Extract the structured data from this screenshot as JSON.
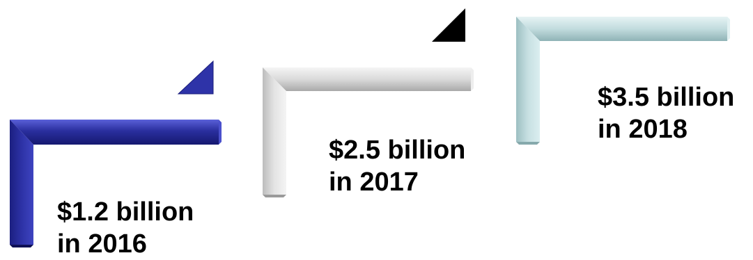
{
  "steps": [
    {
      "amount": "$1.2 billion",
      "year_text": "in 2016",
      "bracket_color": "#2a2f9e",
      "corner_color": "#2e33a8"
    },
    {
      "amount": "$2.5 billion",
      "year_text": "in 2017",
      "bracket_color": "#d6d6d6",
      "corner_color": "#000000"
    },
    {
      "amount": "$3.5 billion",
      "year_text": "in 2018",
      "bracket_color": "#b9d6d8",
      "corner_color": null
    }
  ],
  "text_color": "#000000"
}
